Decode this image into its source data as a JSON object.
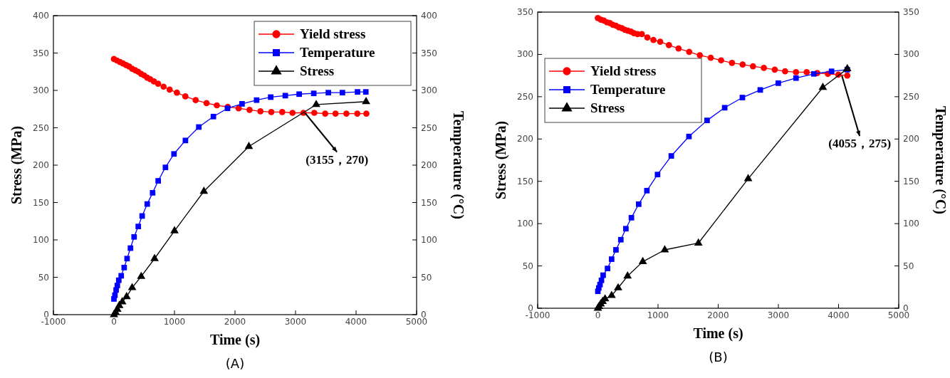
{
  "chart_data": [
    {
      "type": "line",
      "title": "(A)",
      "xlabel": "Time (s)",
      "ylabel": "Stress (MPa)",
      "y2label": "Temperature (°C)",
      "xlim": [
        -1000,
        5000
      ],
      "xticks": [
        -1000,
        0,
        1000,
        2000,
        3000,
        4000,
        5000
      ],
      "ylim": [
        0,
        400
      ],
      "yticks": [
        0,
        50,
        100,
        150,
        200,
        250,
        300,
        350,
        400
      ],
      "y2lim": [
        0,
        400
      ],
      "y2ticks": [
        0,
        50,
        100,
        150,
        200,
        250,
        300,
        350,
        400
      ],
      "legend": "top right",
      "grid": false,
      "annotations": [
        {
          "text": "(3155，270)",
          "x": 3155,
          "y": 270
        }
      ],
      "series": [
        {
          "name": "Yield stress",
          "color": "#ff0000",
          "marker": "circle",
          "x": [
            0,
            50,
            100,
            150,
            200,
            250,
            300,
            350,
            400,
            450,
            500,
            550,
            600,
            660,
            730,
            820,
            920,
            1040,
            1180,
            1350,
            1530,
            1700,
            1880,
            2060,
            2240,
            2420,
            2600,
            2780,
            2950,
            3130,
            3310,
            3490,
            3660,
            3840,
            4020,
            4170
          ],
          "values": [
            342,
            340,
            338,
            336,
            334,
            332,
            329,
            327,
            325,
            322,
            320,
            317,
            315,
            312,
            309,
            305,
            301,
            297,
            292,
            287,
            283,
            280,
            278,
            276,
            274,
            272,
            271,
            271,
            270,
            270,
            270,
            269,
            269,
            269,
            269,
            269
          ]
        },
        {
          "name": "Temperature",
          "color": "#0000ff",
          "marker": "square",
          "axis": "y2",
          "x": [
            0,
            16,
            36,
            56,
            80,
            120,
            169,
            217,
            273,
            333,
            402,
            466,
            550,
            639,
            731,
            851,
            992,
            1181,
            1402,
            1643,
            1876,
            2116,
            2357,
            2590,
            2831,
            3060,
            3301,
            3542,
            3775,
            4024,
            4161
          ],
          "values": [
            21,
            26,
            33,
            39,
            46,
            52,
            63,
            75,
            89,
            104,
            118,
            132,
            148,
            163,
            179,
            197,
            215,
            233,
            251,
            265,
            276,
            282,
            287,
            291,
            293,
            295,
            296,
            297,
            297,
            298,
            298
          ]
        },
        {
          "name": "Stress",
          "color": "#000000",
          "marker": "triangle",
          "x": [
            0,
            28,
            56,
            88,
            137,
            209,
            301,
            450,
            671,
            1000,
            1486,
            2229,
            3341,
            4165
          ],
          "values": [
            0,
            3,
            7,
            12,
            17,
            24,
            36,
            51,
            75,
            112,
            165,
            225,
            281,
            285
          ]
        }
      ]
    },
    {
      "type": "line",
      "title": "(B)",
      "xlabel": "Time (s)",
      "ylabel": "Stress (MPa)",
      "y2label": "Temperature (°C)",
      "xlim": [
        -1000,
        5000
      ],
      "xticks": [
        -1000,
        0,
        1000,
        2000,
        3000,
        4000,
        5000
      ],
      "ylim": [
        0,
        350
      ],
      "yticks": [
        0,
        50,
        100,
        150,
        200,
        250,
        300,
        350
      ],
      "y2lim": [
        0,
        350
      ],
      "y2ticks": [
        0,
        50,
        100,
        150,
        200,
        250,
        300,
        350
      ],
      "legend": "top left",
      "grid": false,
      "annotations": [
        {
          "text": "(4055，275)",
          "x": 4055,
          "y": 275
        }
      ],
      "series": [
        {
          "name": "Yield stress",
          "color": "#ff0000",
          "marker": "circle",
          "x": [
            0,
            50,
            100,
            150,
            200,
            250,
            300,
            350,
            400,
            450,
            500,
            550,
            600,
            660,
            731,
            823,
            924,
            1036,
            1181,
            1341,
            1518,
            1695,
            1876,
            2048,
            2229,
            2406,
            2578,
            2759,
            2940,
            3112,
            3293,
            3470,
            3647,
            3823,
            3996,
            4145
          ],
          "values": [
            343,
            341,
            340,
            338,
            337,
            335,
            334,
            332,
            331,
            329,
            328,
            327,
            325,
            324,
            324,
            320,
            317,
            315,
            311,
            307,
            303,
            299,
            296,
            293,
            290,
            288,
            286,
            284,
            282,
            280,
            279,
            279,
            278,
            277,
            276,
            275
          ]
        },
        {
          "name": "Temperature",
          "color": "#0000ff",
          "marker": "square",
          "axis": "y2",
          "x": [
            0,
            16,
            36,
            60,
            88,
            161,
            229,
            301,
            382,
            466,
            558,
            679,
            815,
            992,
            1221,
            1514,
            1815,
            2108,
            2402,
            2699,
            2999,
            3293,
            3590,
            3884,
            4145
          ],
          "values": [
            20,
            24,
            28,
            33,
            39,
            47,
            58,
            69,
            81,
            94,
            107,
            123,
            139,
            158,
            180,
            203,
            222,
            237,
            249,
            258,
            266,
            272,
            277,
            280,
            282
          ]
        },
        {
          "name": "Stress",
          "color": "#000000",
          "marker": "triangle",
          "x": [
            0,
            20,
            48,
            80,
            120,
            229,
            337,
            494,
            747,
            1112,
            1671,
            2498,
            3739,
            4145
          ],
          "values": [
            0,
            2,
            5,
            8,
            11,
            15,
            24,
            38,
            55,
            69,
            77,
            153,
            261,
            283
          ]
        }
      ]
    }
  ]
}
